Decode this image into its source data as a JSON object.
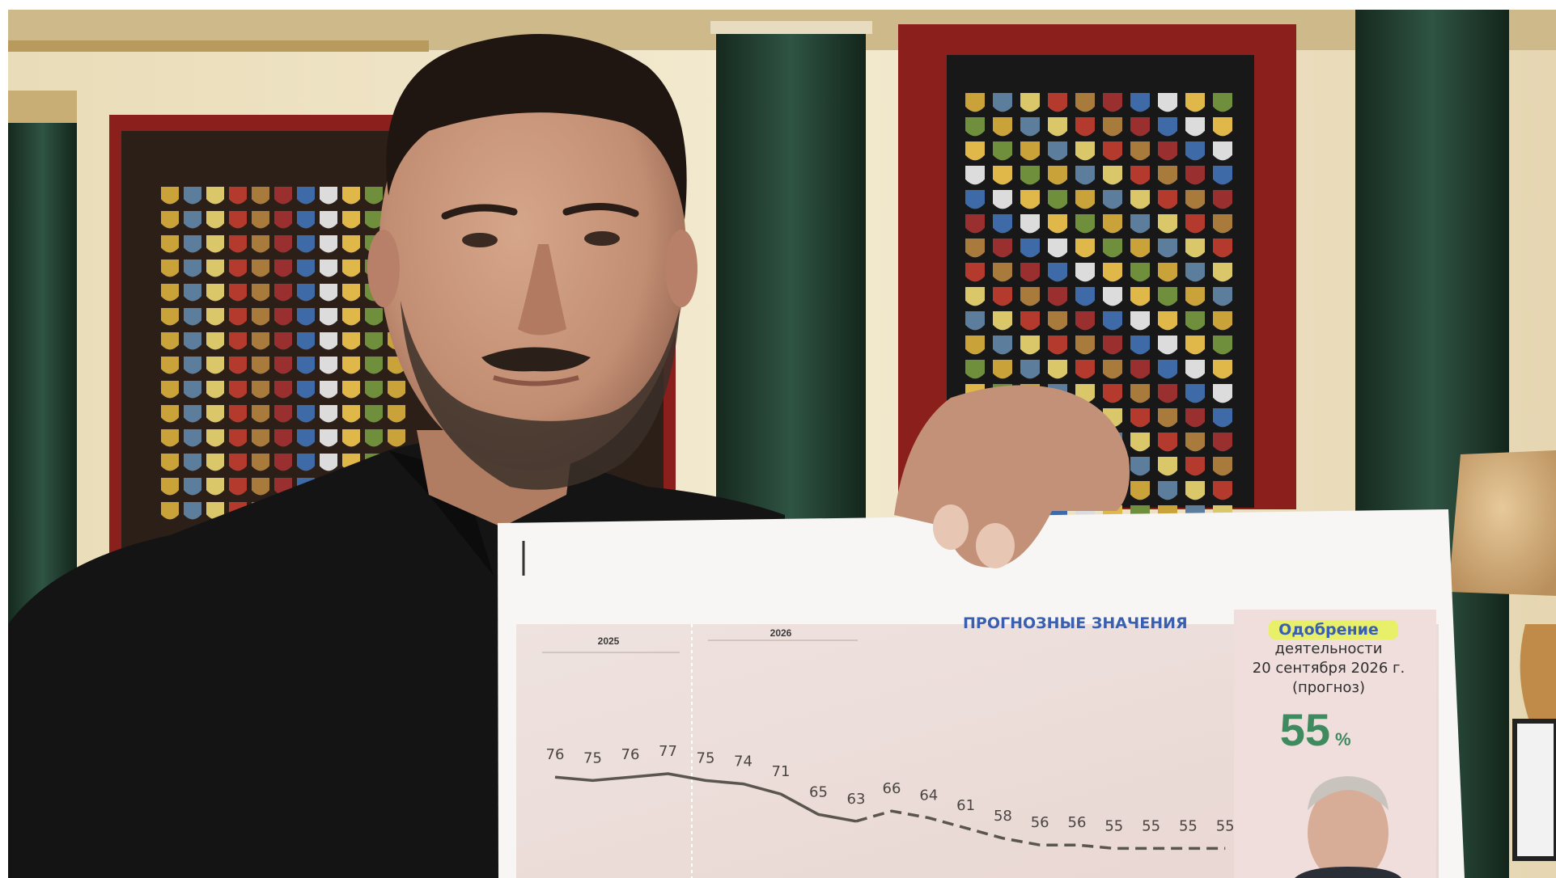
{
  "sheet": {
    "heading": "ПРОГНОЗНЫЕ ЗНАЧЕНИЯ",
    "year_labels": [
      "2025",
      "2026"
    ],
    "approval_box": {
      "line1": "Одобрение",
      "line2": "деятельности",
      "line3": "20 сентября 2026 г.",
      "line4": "(прогноз)",
      "value": "55",
      "unit": "%"
    }
  },
  "chart_data": {
    "type": "line",
    "series": [
      {
        "style": "solid",
        "values": [
          76,
          75,
          76,
          77,
          75,
          74,
          71,
          65,
          63
        ]
      },
      {
        "style": "dashed",
        "values": [
          66,
          64,
          61,
          58,
          56,
          56,
          55,
          55,
          55,
          55
        ]
      }
    ],
    "point_labels": [
      "76",
      "75",
      "76",
      "77",
      "75",
      "74",
      "71",
      "65",
      "63",
      "66",
      "64",
      "61",
      "58",
      "56",
      "56",
      "55",
      "55",
      "55",
      "55"
    ],
    "colors": {
      "line": "#5b5550",
      "label": "#4a4542",
      "heading": "#3a5fb0",
      "accent_value": "#3f8a5f",
      "highlight": "#e8f06a"
    }
  }
}
